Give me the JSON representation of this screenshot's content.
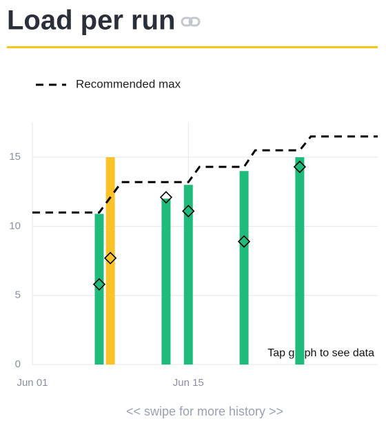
{
  "chart_data": {
    "type": "bar",
    "title": "Load per run",
    "x": [
      7,
      8,
      13,
      15,
      20,
      25
    ],
    "values": [
      10.9,
      15,
      12,
      13,
      14,
      15
    ],
    "colors": [
      "#1fbb7c",
      "#fcc22a",
      "#1fbb7c",
      "#1fbb7c",
      "#1fbb7c",
      "#1fbb7c"
    ],
    "markers": {
      "x": [
        7,
        8,
        13,
        15,
        20,
        25
      ],
      "values": [
        5.8,
        7.7,
        12.1,
        11.1,
        8.9,
        14.3
      ]
    },
    "series": [
      {
        "name": "Recommended max",
        "color": "#000000",
        "x": [
          1,
          7,
          9,
          15,
          16,
          20,
          21,
          25,
          26,
          32
        ],
        "values": [
          11,
          11,
          13.2,
          13.2,
          14.3,
          14.3,
          15.5,
          15.5,
          16.5,
          16.5
        ]
      }
    ],
    "xlim": [
      1,
      32
    ],
    "xticks": [
      {
        "value": 1,
        "label": "Jun 01"
      },
      {
        "value": 15,
        "label": "Jun 15"
      }
    ],
    "ylim": [
      0,
      17.5
    ],
    "yticks": [
      0,
      5,
      10,
      15
    ],
    "grid": true,
    "annotation": "Tap graph to see data",
    "footer": "<< swipe for more history >>"
  }
}
